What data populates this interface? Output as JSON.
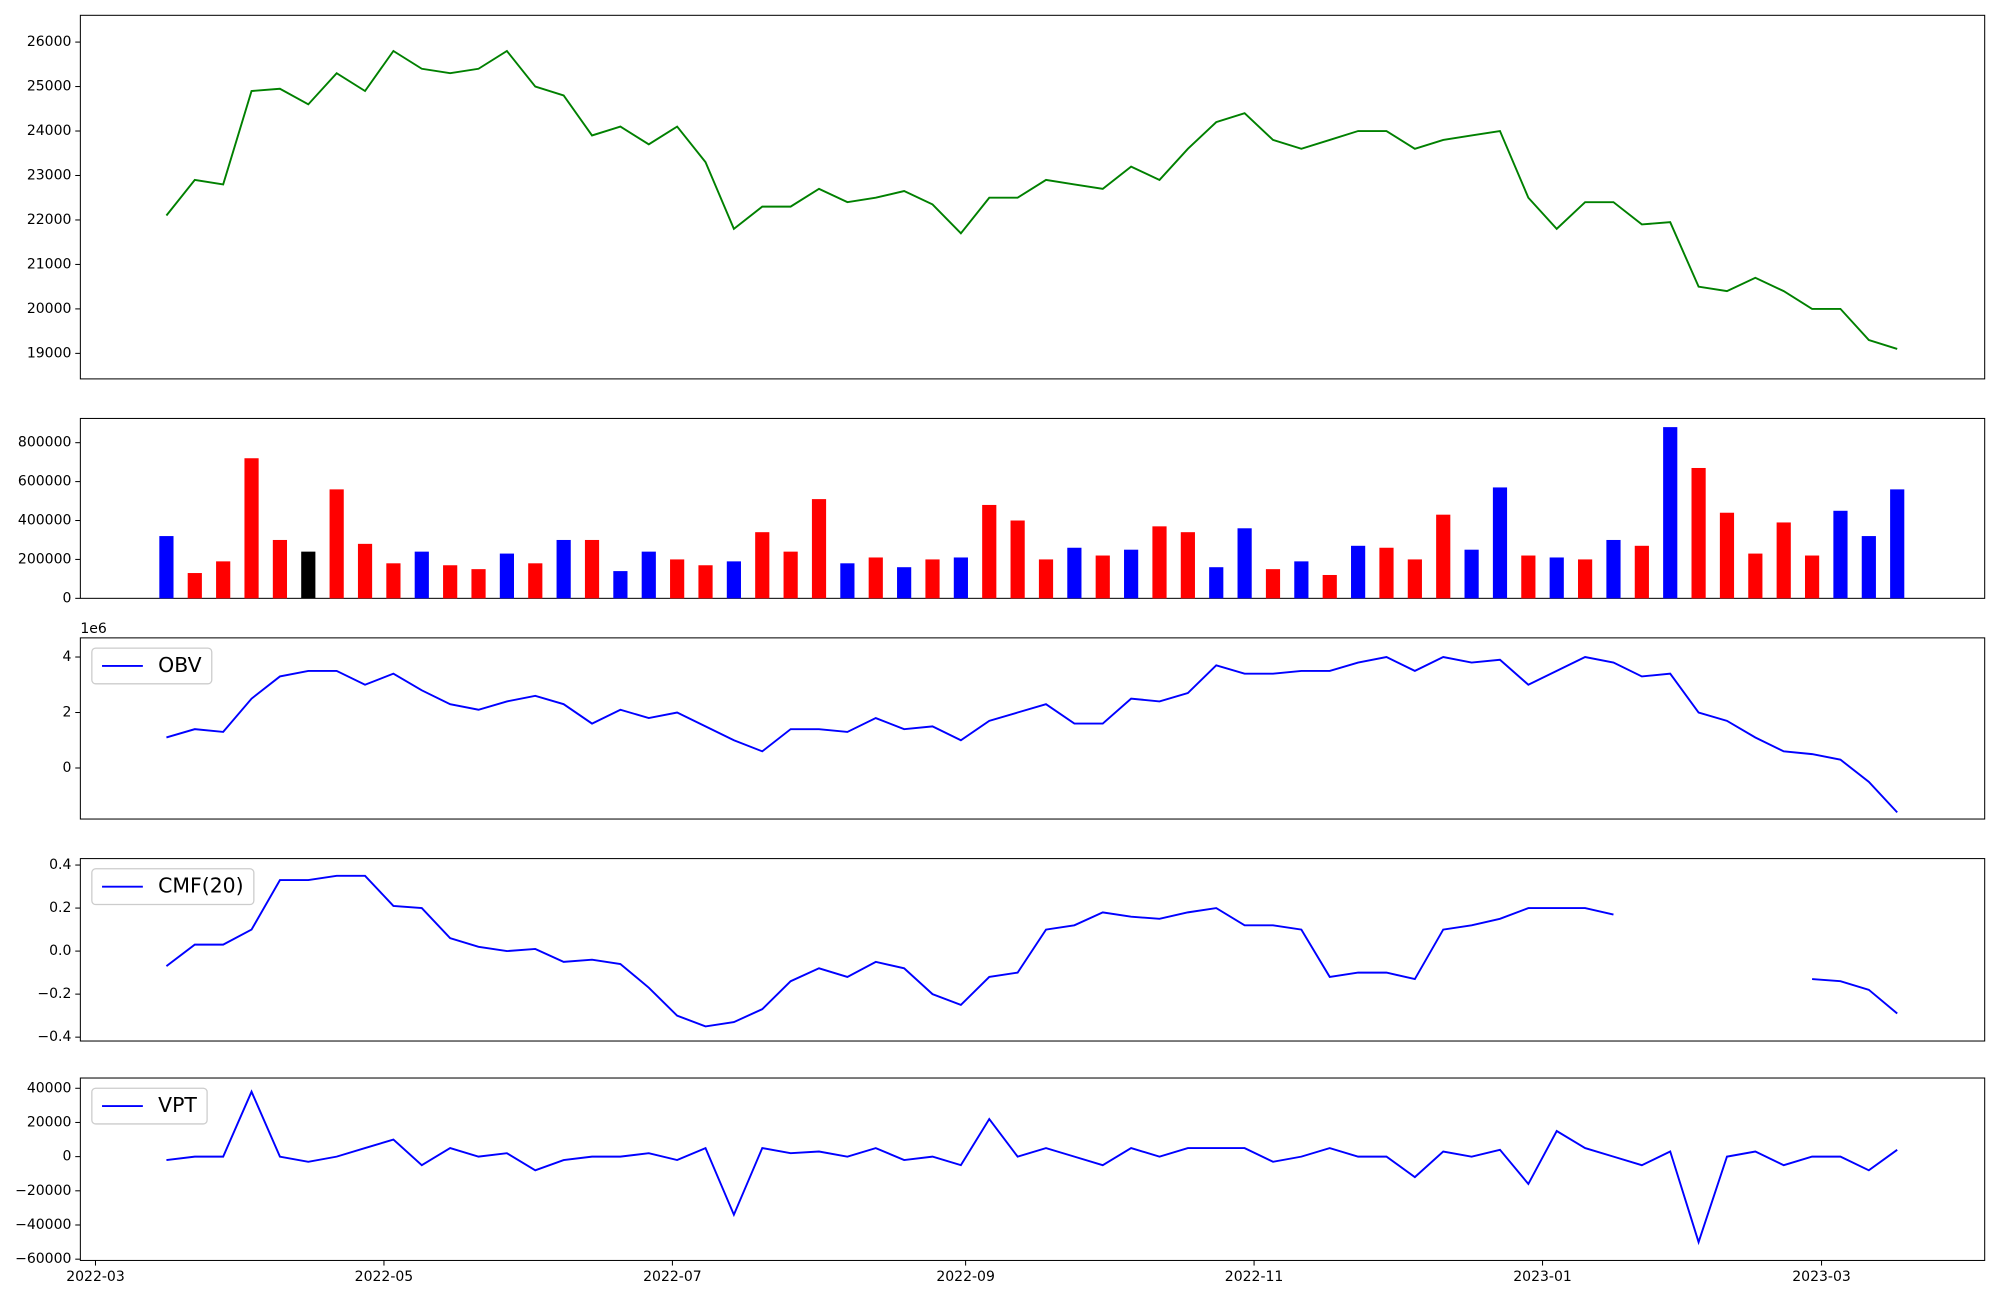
{
  "chart_data": [
    {
      "type": "line",
      "x": [
        15,
        21,
        27,
        33,
        39,
        45,
        51,
        57,
        63,
        69,
        75,
        81,
        87,
        93,
        99,
        105,
        111,
        117,
        123,
        129,
        135,
        141,
        147,
        153,
        159,
        165,
        171,
        177,
        183,
        189,
        195,
        201,
        207,
        213,
        219,
        225,
        231,
        237,
        243,
        249,
        255,
        261,
        267,
        273,
        279,
        285,
        291,
        297,
        303,
        309,
        315,
        321,
        327,
        333,
        339,
        345,
        351,
        357,
        363,
        369,
        375,
        381
      ],
      "xlim": [
        -3.2,
        399.5
      ],
      "ylim": [
        18426,
        26602
      ],
      "yticks": [
        19000,
        20000,
        21000,
        22000,
        23000,
        24000,
        25000,
        26000
      ],
      "series": [
        {
          "color": "green",
          "values": [
            22100,
            22900,
            22800,
            24900,
            24950,
            24600,
            25300,
            24900,
            25800,
            25400,
            25300,
            25400,
            25800,
            25000,
            24800,
            23900,
            24100,
            23700,
            24100,
            23300,
            21800,
            22300,
            22300,
            22700,
            22400,
            22500,
            22650,
            22350,
            21700,
            22500,
            22500,
            22900,
            22800,
            22700,
            23200,
            22900,
            23600,
            24200,
            24400,
            23800,
            23600,
            23800,
            24000,
            24000,
            23600,
            23800,
            23900,
            24000,
            22500,
            21800,
            22400,
            22400,
            21900,
            21950,
            20500,
            20400,
            20700,
            20400,
            20000,
            20000,
            19300,
            19100
          ]
        }
      ]
    },
    {
      "type": "bar",
      "x": [
        15,
        21,
        27,
        33,
        39,
        45,
        51,
        57,
        63,
        69,
        75,
        81,
        87,
        93,
        99,
        105,
        111,
        117,
        123,
        129,
        135,
        141,
        147,
        153,
        159,
        165,
        171,
        177,
        183,
        189,
        195,
        201,
        207,
        213,
        219,
        225,
        231,
        237,
        243,
        249,
        255,
        261,
        267,
        273,
        279,
        285,
        291,
        297,
        303,
        309,
        315,
        321,
        327,
        333,
        339,
        345,
        351,
        357,
        363,
        369,
        375,
        381
      ],
      "xlim": [
        -3.2,
        399.5
      ],
      "ylim": [
        0,
        924590
      ],
      "yticks": [
        0,
        200000,
        400000,
        600000,
        800000
      ],
      "values": [
        320000,
        130000,
        190000,
        720000,
        300000,
        240000,
        560000,
        280000,
        180000,
        240000,
        170000,
        150000,
        230000,
        180000,
        300000,
        300000,
        140000,
        240000,
        200000,
        170000,
        190000,
        340000,
        240000,
        510000,
        180000,
        210000,
        160000,
        200000,
        210000,
        480000,
        400000,
        200000,
        260000,
        220000,
        250000,
        370000,
        340000,
        160000,
        360000,
        150000,
        190000,
        120000,
        270000,
        260000,
        200000,
        430000,
        250000,
        570000,
        220000,
        210000,
        200000,
        300000,
        270000,
        880000,
        670000,
        440000,
        230000,
        390000,
        220000,
        450000,
        320000,
        560000
      ],
      "colors": [
        "blue",
        "red",
        "red",
        "red",
        "red",
        "black",
        "red",
        "red",
        "red",
        "blue",
        "red",
        "red",
        "blue",
        "red",
        "blue",
        "red",
        "blue",
        "blue",
        "red",
        "red",
        "blue",
        "red",
        "red",
        "red",
        "blue",
        "red",
        "blue",
        "red",
        "blue",
        "red",
        "red",
        "red",
        "blue",
        "red",
        "blue",
        "red",
        "red",
        "blue",
        "blue",
        "red",
        "blue",
        "red",
        "blue",
        "red",
        "red",
        "red",
        "blue",
        "blue",
        "red",
        "blue",
        "red",
        "blue",
        "red",
        "blue",
        "red",
        "red",
        "red",
        "red",
        "red",
        "blue",
        "blue",
        "blue"
      ]
    },
    {
      "type": "line",
      "x": [
        15,
        21,
        27,
        33,
        39,
        45,
        51,
        57,
        63,
        69,
        75,
        81,
        87,
        93,
        99,
        105,
        111,
        117,
        123,
        129,
        135,
        141,
        147,
        153,
        159,
        165,
        171,
        177,
        183,
        189,
        195,
        201,
        207,
        213,
        219,
        225,
        231,
        237,
        243,
        249,
        255,
        261,
        267,
        273,
        279,
        285,
        291,
        297,
        303,
        309,
        315,
        321,
        327,
        333,
        339,
        345,
        351,
        357,
        363,
        369,
        375,
        381
      ],
      "xlim": [
        -3.2,
        399.5
      ],
      "ylim": [
        -1840000,
        4690000
      ],
      "yticks": [
        {
          "value": 0,
          "label": "0"
        },
        {
          "value": 2000000,
          "label": "2"
        },
        {
          "value": 4000000,
          "label": "4"
        }
      ],
      "offset_text": "1e6",
      "legend": "upper left",
      "series": [
        {
          "name": "OBV",
          "color": "blue",
          "values": [
            1100000,
            1400000,
            1300000,
            2500000,
            3300000,
            3500000,
            3500000,
            3000000,
            3400000,
            2800000,
            2300000,
            2100000,
            2400000,
            2600000,
            2300000,
            1600000,
            2100000,
            1800000,
            2000000,
            1500000,
            1000000,
            600000,
            1400000,
            1400000,
            1300000,
            1800000,
            1400000,
            1500000,
            1000000,
            1700000,
            2000000,
            2300000,
            1600000,
            1600000,
            2500000,
            2400000,
            2700000,
            3700000,
            3400000,
            3400000,
            3500000,
            3500000,
            3800000,
            4000000,
            3500000,
            4000000,
            3800000,
            3900000,
            3000000,
            3500000,
            4000000,
            3800000,
            3300000,
            3400000,
            2000000,
            1700000,
            1100000,
            600000,
            500000,
            300000,
            -500000,
            -1600000
          ]
        }
      ]
    },
    {
      "type": "line",
      "x": [
        15,
        21,
        27,
        33,
        39,
        45,
        51,
        57,
        63,
        69,
        75,
        81,
        87,
        93,
        99,
        105,
        111,
        117,
        123,
        129,
        135,
        141,
        147,
        153,
        159,
        165,
        171,
        177,
        183,
        189,
        195,
        201,
        207,
        213,
        219,
        225,
        231,
        237,
        243,
        249,
        255,
        261,
        267,
        273,
        279,
        285,
        291,
        297,
        303,
        309,
        315,
        321,
        327,
        333,
        339,
        345,
        351,
        357,
        363,
        369,
        375,
        381
      ],
      "xlim": [
        -3.2,
        399.5
      ],
      "ylim": [
        -0.418,
        0.43
      ],
      "yticks": [
        {
          "value": -0.4,
          "label": "−0.4"
        },
        {
          "value": -0.2,
          "label": "−0.2"
        },
        {
          "value": 0,
          "label": "0.0"
        },
        0.2,
        0.4
      ],
      "legend": "upper left",
      "series": [
        {
          "name": "CMF(20)",
          "color": "blue",
          "values": [
            -0.07,
            0.03,
            0.03,
            0.1,
            0.33,
            0.33,
            0.35,
            0.35,
            0.21,
            0.2,
            0.06,
            0.02,
            0,
            0.01,
            -0.05,
            -0.04,
            -0.06,
            -0.17,
            -0.3,
            -0.35,
            -0.33,
            -0.27,
            -0.14,
            -0.08,
            -0.12,
            -0.05,
            -0.08,
            -0.2,
            -0.25,
            -0.12,
            -0.1,
            0.1,
            0.12,
            0.18,
            0.16,
            0.15,
            0.18,
            0.2,
            0.12,
            0.12,
            0.1,
            -0.12,
            -0.1,
            -0.1,
            -0.13,
            0.1,
            0.12,
            0.15,
            0.2,
            0.2,
            0.2,
            0.17,
            null,
            null,
            null,
            null,
            null,
            null,
            -0.13,
            -0.14,
            -0.18,
            -0.29
          ]
        }
      ]
    },
    {
      "type": "line",
      "x": [
        15,
        21,
        27,
        33,
        39,
        45,
        51,
        57,
        63,
        69,
        75,
        81,
        87,
        93,
        99,
        105,
        111,
        117,
        123,
        129,
        135,
        141,
        147,
        153,
        159,
        165,
        171,
        177,
        183,
        189,
        195,
        201,
        207,
        213,
        219,
        225,
        231,
        237,
        243,
        249,
        255,
        261,
        267,
        273,
        279,
        285,
        291,
        297,
        303,
        309,
        315,
        321,
        327,
        333,
        339,
        345,
        351,
        357,
        363,
        369,
        375,
        381
      ],
      "xlim": [
        -3.2,
        399.5
      ],
      "xticks": [
        {
          "value": 0,
          "label": "2022-03"
        },
        {
          "value": 61,
          "label": "2022-05"
        },
        {
          "value": 122,
          "label": "2022-07"
        },
        {
          "value": 184,
          "label": "2022-09"
        },
        {
          "value": 245,
          "label": "2022-11"
        },
        {
          "value": 306,
          "label": "2023-01"
        },
        {
          "value": 365,
          "label": "2023-03"
        }
      ],
      "ylim": [
        -60750,
        46000
      ],
      "yticks": [
        {
          "value": -60000,
          "label": "−60000"
        },
        {
          "value": -40000,
          "label": "−40000"
        },
        {
          "value": -20000,
          "label": "−20000"
        },
        0,
        20000,
        40000
      ],
      "legend": "upper left",
      "series": [
        {
          "name": "VPT",
          "color": "blue",
          "values": [
            -2000,
            0,
            0,
            38000,
            0,
            -3000,
            0,
            5000,
            10000,
            -5000,
            5000,
            0,
            2000,
            -8000,
            -2000,
            0,
            0,
            2000,
            -2000,
            5000,
            -34000,
            5000,
            2000,
            3000,
            0,
            5000,
            -2000,
            0,
            -5000,
            22000,
            0,
            5000,
            0,
            -5000,
            5000,
            0,
            5000,
            5000,
            5000,
            -3000,
            0,
            5000,
            0,
            0,
            -12000,
            3000,
            0,
            4000,
            -16000,
            15000,
            5000,
            0,
            -5000,
            3000,
            -50000,
            0,
            3000,
            -5000,
            0,
            0,
            -8000,
            4000
          ]
        }
      ]
    }
  ]
}
